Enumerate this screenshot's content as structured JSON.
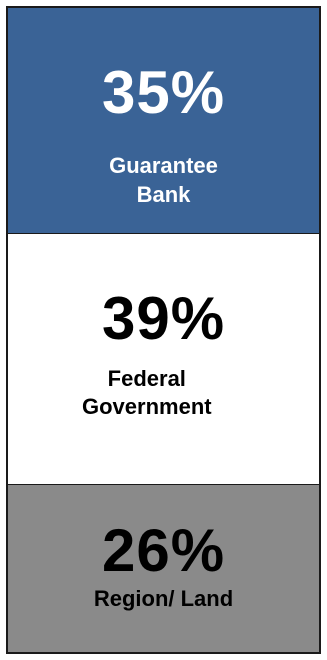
{
  "chart_data": {
    "type": "bar",
    "categories": [
      "Guarantee\nBank",
      "Federal\nGovernment",
      "Region/ Land"
    ],
    "values": [
      35,
      39,
      26
    ],
    "value_labels": [
      "35%",
      "39%",
      "26%"
    ],
    "colors": [
      "#3a6396",
      "#ffffff",
      "#8a8a8a"
    ],
    "text_colors": [
      "#ffffff",
      "#000000",
      "#000000"
    ]
  }
}
